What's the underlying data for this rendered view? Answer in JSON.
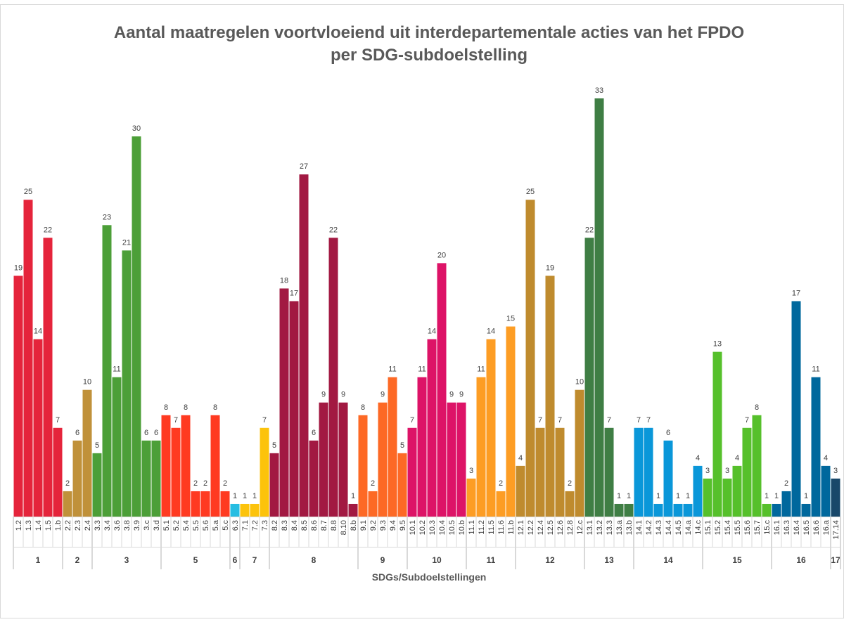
{
  "chart_data": {
    "type": "bar",
    "title": [
      "Aantal maatregelen voortvloeiend uit interdepartementale acties van het FPDO",
      "per SDG-subdoelstelling"
    ],
    "x_label": "SDGs/Subdoelstellingen",
    "groups": [
      {
        "name": "1",
        "color": "#e5243b",
        "categories": [
          "1.2",
          "1.3",
          "1.4",
          "1.5",
          "1.b"
        ],
        "values": [
          19,
          25,
          14,
          22,
          7
        ]
      },
      {
        "name": "2",
        "color": "#c0913a",
        "categories": [
          "2.2",
          "2.3",
          "2.4"
        ],
        "values": [
          2,
          6,
          10
        ]
      },
      {
        "name": "3",
        "color": "#4c9f38",
        "categories": [
          "3.3",
          "3.4",
          "3.6",
          "3.8",
          "3.9",
          "3.c",
          "3.d"
        ],
        "values": [
          5,
          23,
          11,
          21,
          30,
          6,
          6
        ]
      },
      {
        "name": "5",
        "color": "#ff3a21",
        "categories": [
          "5.1",
          "5.2",
          "5.4",
          "5.5",
          "5.6",
          "5.a",
          "5.c"
        ],
        "values": [
          8,
          7,
          8,
          2,
          2,
          8,
          2
        ]
      },
      {
        "name": "6",
        "color": "#26bde2",
        "categories": [
          "6.3"
        ],
        "values": [
          1
        ]
      },
      {
        "name": "7",
        "color": "#fcc30b",
        "categories": [
          "7.1",
          "7.2",
          "7.3"
        ],
        "values": [
          1,
          1,
          7
        ]
      },
      {
        "name": "8",
        "color": "#a21942",
        "categories": [
          "8.2",
          "8.3",
          "8.4",
          "8.5",
          "8.6",
          "8.7",
          "8.8",
          "8.10",
          "8.b"
        ],
        "values": [
          5,
          18,
          17,
          27,
          6,
          9,
          22,
          9,
          1
        ]
      },
      {
        "name": "9",
        "color": "#fd6925",
        "categories": [
          "9.1",
          "9.2",
          "9.3",
          "9.4",
          "9.5"
        ],
        "values": [
          8,
          2,
          9,
          11,
          5
        ]
      },
      {
        "name": "10",
        "color": "#dd1367",
        "categories": [
          "10.1",
          "10.2",
          "10.3",
          "10.4",
          "10.5",
          "10.b"
        ],
        "values": [
          7,
          11,
          14,
          20,
          9,
          9
        ]
      },
      {
        "name": "11",
        "color": "#fd9d24",
        "categories": [
          "11.1",
          "11.2",
          "11.5",
          "11.6",
          "11.b"
        ],
        "values": [
          3,
          11,
          14,
          2,
          15
        ]
      },
      {
        "name": "12",
        "color": "#bf8b2e",
        "categories": [
          "12.1",
          "12.2",
          "12.4",
          "12.5",
          "12.6",
          "12.8",
          "12.c"
        ],
        "values": [
          4,
          25,
          7,
          19,
          7,
          2,
          10
        ]
      },
      {
        "name": "13",
        "color": "#3f7e44",
        "categories": [
          "13.1",
          "13.2",
          "13.3",
          "13.a",
          "13.b"
        ],
        "values": [
          22,
          33,
          7,
          1,
          1
        ]
      },
      {
        "name": "14",
        "color": "#0a97d9",
        "categories": [
          "14.1",
          "14.2",
          "14.3",
          "14.4",
          "14.5",
          "14.a",
          "14.c"
        ],
        "values": [
          7,
          7,
          1,
          6,
          1,
          1,
          4
        ]
      },
      {
        "name": "15",
        "color": "#56c02b",
        "categories": [
          "15.1",
          "15.2",
          "15.4",
          "15.5",
          "15.6",
          "15.7",
          "15.c"
        ],
        "values": [
          3,
          13,
          3,
          4,
          7,
          8,
          1
        ]
      },
      {
        "name": "16",
        "color": "#00689d",
        "categories": [
          "16.1",
          "16.3",
          "16.4",
          "16.5",
          "16.6",
          "16.a"
        ],
        "values": [
          1,
          2,
          17,
          1,
          11,
          4
        ]
      },
      {
        "name": "17",
        "color": "#19486a",
        "categories": [
          "17.14"
        ],
        "values": [
          3
        ]
      }
    ]
  }
}
